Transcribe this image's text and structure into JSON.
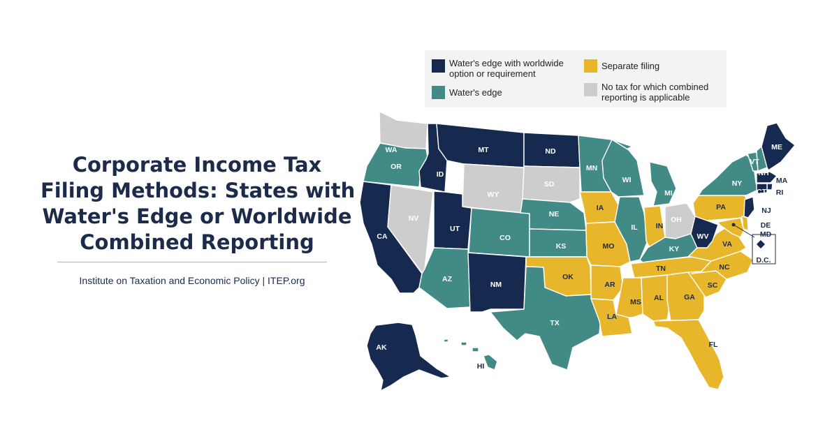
{
  "title_lines": [
    "Corporate Income Tax",
    "Filing Methods: States with",
    "Water's Edge or Worldwide",
    "Combined Reporting"
  ],
  "credit": "Institute on Taxation and Economic Policy | ITEP.org",
  "colors": {
    "worldwide": "#162a4f",
    "waters_edge": "#418a86",
    "separate": "#e8b62b",
    "none": "#cdcdcd"
  },
  "legend": [
    {
      "category": "worldwide",
      "label": "Water's edge with worldwide\noption or requirement"
    },
    {
      "category": "separate",
      "label": "Separate filing"
    },
    {
      "category": "waters_edge",
      "label": "Water's edge"
    },
    {
      "category": "none",
      "label": "No tax for which combined\nreporting is applicable"
    }
  ],
  "states": [
    {
      "abbr": "WA",
      "category": "none"
    },
    {
      "abbr": "OR",
      "category": "waters_edge"
    },
    {
      "abbr": "CA",
      "category": "worldwide"
    },
    {
      "abbr": "NV",
      "category": "none"
    },
    {
      "abbr": "ID",
      "category": "worldwide"
    },
    {
      "abbr": "MT",
      "category": "worldwide"
    },
    {
      "abbr": "WY",
      "category": "none"
    },
    {
      "abbr": "UT",
      "category": "worldwide"
    },
    {
      "abbr": "AZ",
      "category": "waters_edge"
    },
    {
      "abbr": "CO",
      "category": "waters_edge"
    },
    {
      "abbr": "NM",
      "category": "worldwide"
    },
    {
      "abbr": "ND",
      "category": "worldwide"
    },
    {
      "abbr": "SD",
      "category": "none"
    },
    {
      "abbr": "NE",
      "category": "waters_edge"
    },
    {
      "abbr": "KS",
      "category": "waters_edge"
    },
    {
      "abbr": "OK",
      "category": "separate"
    },
    {
      "abbr": "TX",
      "category": "waters_edge"
    },
    {
      "abbr": "MN",
      "category": "waters_edge"
    },
    {
      "abbr": "IA",
      "category": "separate"
    },
    {
      "abbr": "MO",
      "category": "separate"
    },
    {
      "abbr": "AR",
      "category": "separate"
    },
    {
      "abbr": "LA",
      "category": "separate"
    },
    {
      "abbr": "WI",
      "category": "waters_edge"
    },
    {
      "abbr": "IL",
      "category": "waters_edge"
    },
    {
      "abbr": "MI",
      "category": "waters_edge"
    },
    {
      "abbr": "IN",
      "category": "separate"
    },
    {
      "abbr": "OH",
      "category": "none"
    },
    {
      "abbr": "KY",
      "category": "waters_edge"
    },
    {
      "abbr": "TN",
      "category": "separate"
    },
    {
      "abbr": "MS",
      "category": "separate"
    },
    {
      "abbr": "AL",
      "category": "separate"
    },
    {
      "abbr": "GA",
      "category": "separate"
    },
    {
      "abbr": "FL",
      "category": "separate"
    },
    {
      "abbr": "SC",
      "category": "separate"
    },
    {
      "abbr": "NC",
      "category": "separate"
    },
    {
      "abbr": "VA",
      "category": "separate"
    },
    {
      "abbr": "WV",
      "category": "worldwide"
    },
    {
      "abbr": "PA",
      "category": "separate"
    },
    {
      "abbr": "NY",
      "category": "waters_edge"
    },
    {
      "abbr": "VT",
      "category": "waters_edge"
    },
    {
      "abbr": "NH",
      "category": "waters_edge"
    },
    {
      "abbr": "ME",
      "category": "worldwide"
    },
    {
      "abbr": "MA",
      "category": "worldwide"
    },
    {
      "abbr": "RI",
      "category": "worldwide"
    },
    {
      "abbr": "CT",
      "category": "worldwide"
    },
    {
      "abbr": "NJ",
      "category": "worldwide"
    },
    {
      "abbr": "DE",
      "category": "separate"
    },
    {
      "abbr": "MD",
      "category": "separate"
    },
    {
      "abbr": "D.C.",
      "category": "worldwide"
    },
    {
      "abbr": "AK",
      "category": "worldwide"
    },
    {
      "abbr": "HI",
      "category": "waters_edge"
    }
  ]
}
